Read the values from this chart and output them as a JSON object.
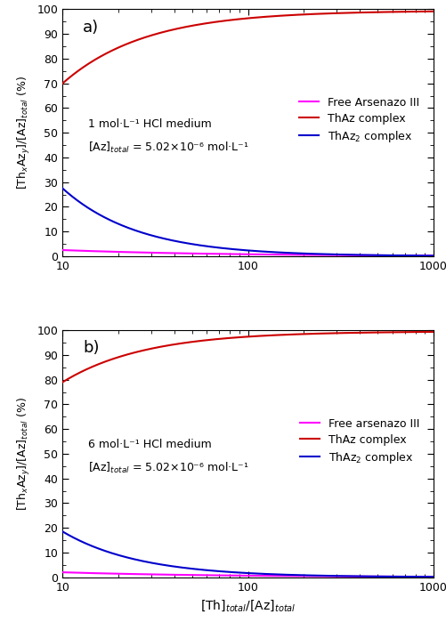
{
  "panel_a": {
    "label": "a)",
    "annot1": "1 mol·L⁻¹ HCl medium",
    "annot2": "[Az]$_{total}$ = 5.02×10⁻⁶ mol·L⁻¹",
    "thaz_start": 70.0,
    "thaz_end": 99.5,
    "thaz2_start": 27.5,
    "thaz2_end": 0.2,
    "free_az_start": 2.5,
    "free_az_end": 0.25
  },
  "panel_b": {
    "label": "b)",
    "annot1": "6 mol·L⁻¹ HCl medium",
    "annot2": "[Az]$_{total}$ = 5.02×10⁻⁶ mol·L⁻¹",
    "thaz_start": 79.0,
    "thaz_end": 99.6,
    "thaz2_start": 18.5,
    "thaz2_end": 0.15,
    "free_az_start": 2.0,
    "free_az_end": 0.2
  },
  "legend_a": [
    "Free Arsenazo III",
    "ThAz complex",
    "ThAz$_2$ complex"
  ],
  "legend_b": [
    "Free arsenazo III",
    "ThAz complex",
    "ThAz$_2$ complex"
  ],
  "color_free": "#FF00FF",
  "color_thaz": "#CC0000",
  "color_thaz2": "#0000CC",
  "xmin": 10,
  "xmax": 1000,
  "ymin": 0,
  "ymax": 100,
  "xlabel": "[Th]$_{total}$/[Az]$_{total}$",
  "ylabel": "[Th$_x$Az$_y$]/[Az]$_{total}$ (%)"
}
